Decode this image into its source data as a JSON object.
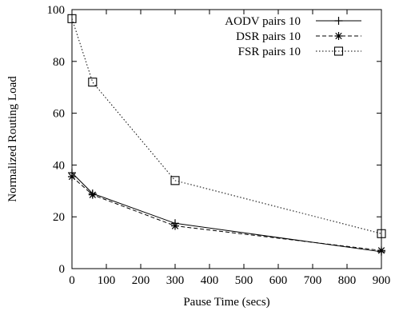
{
  "chart_data": {
    "type": "line",
    "xlabel": "Pause Time (secs)",
    "ylabel": "Normalized Routing Load",
    "xlim": [
      0,
      900
    ],
    "ylim": [
      0,
      100
    ],
    "x_ticks": [
      0,
      100,
      200,
      300,
      400,
      500,
      600,
      700,
      800,
      900
    ],
    "y_ticks": [
      0,
      20,
      40,
      60,
      80,
      100
    ],
    "grid": false,
    "legend_position": "top-right",
    "series": [
      {
        "name": "AODV pairs 10",
        "marker": "plus",
        "line_style": "solid",
        "x": [
          0,
          60,
          300,
          900
        ],
        "y": [
          37,
          29,
          17.5,
          6.5
        ]
      },
      {
        "name": "DSR pairs 10",
        "marker": "asterisk",
        "line_style": "dashed",
        "x": [
          0,
          60,
          300,
          900
        ],
        "y": [
          35.5,
          28.5,
          16.5,
          7
        ]
      },
      {
        "name": "FSR pairs 10",
        "marker": "square",
        "line_style": "dotted",
        "x": [
          0,
          60,
          300,
          900
        ],
        "y": [
          96.5,
          72,
          34,
          13.5
        ]
      }
    ]
  }
}
